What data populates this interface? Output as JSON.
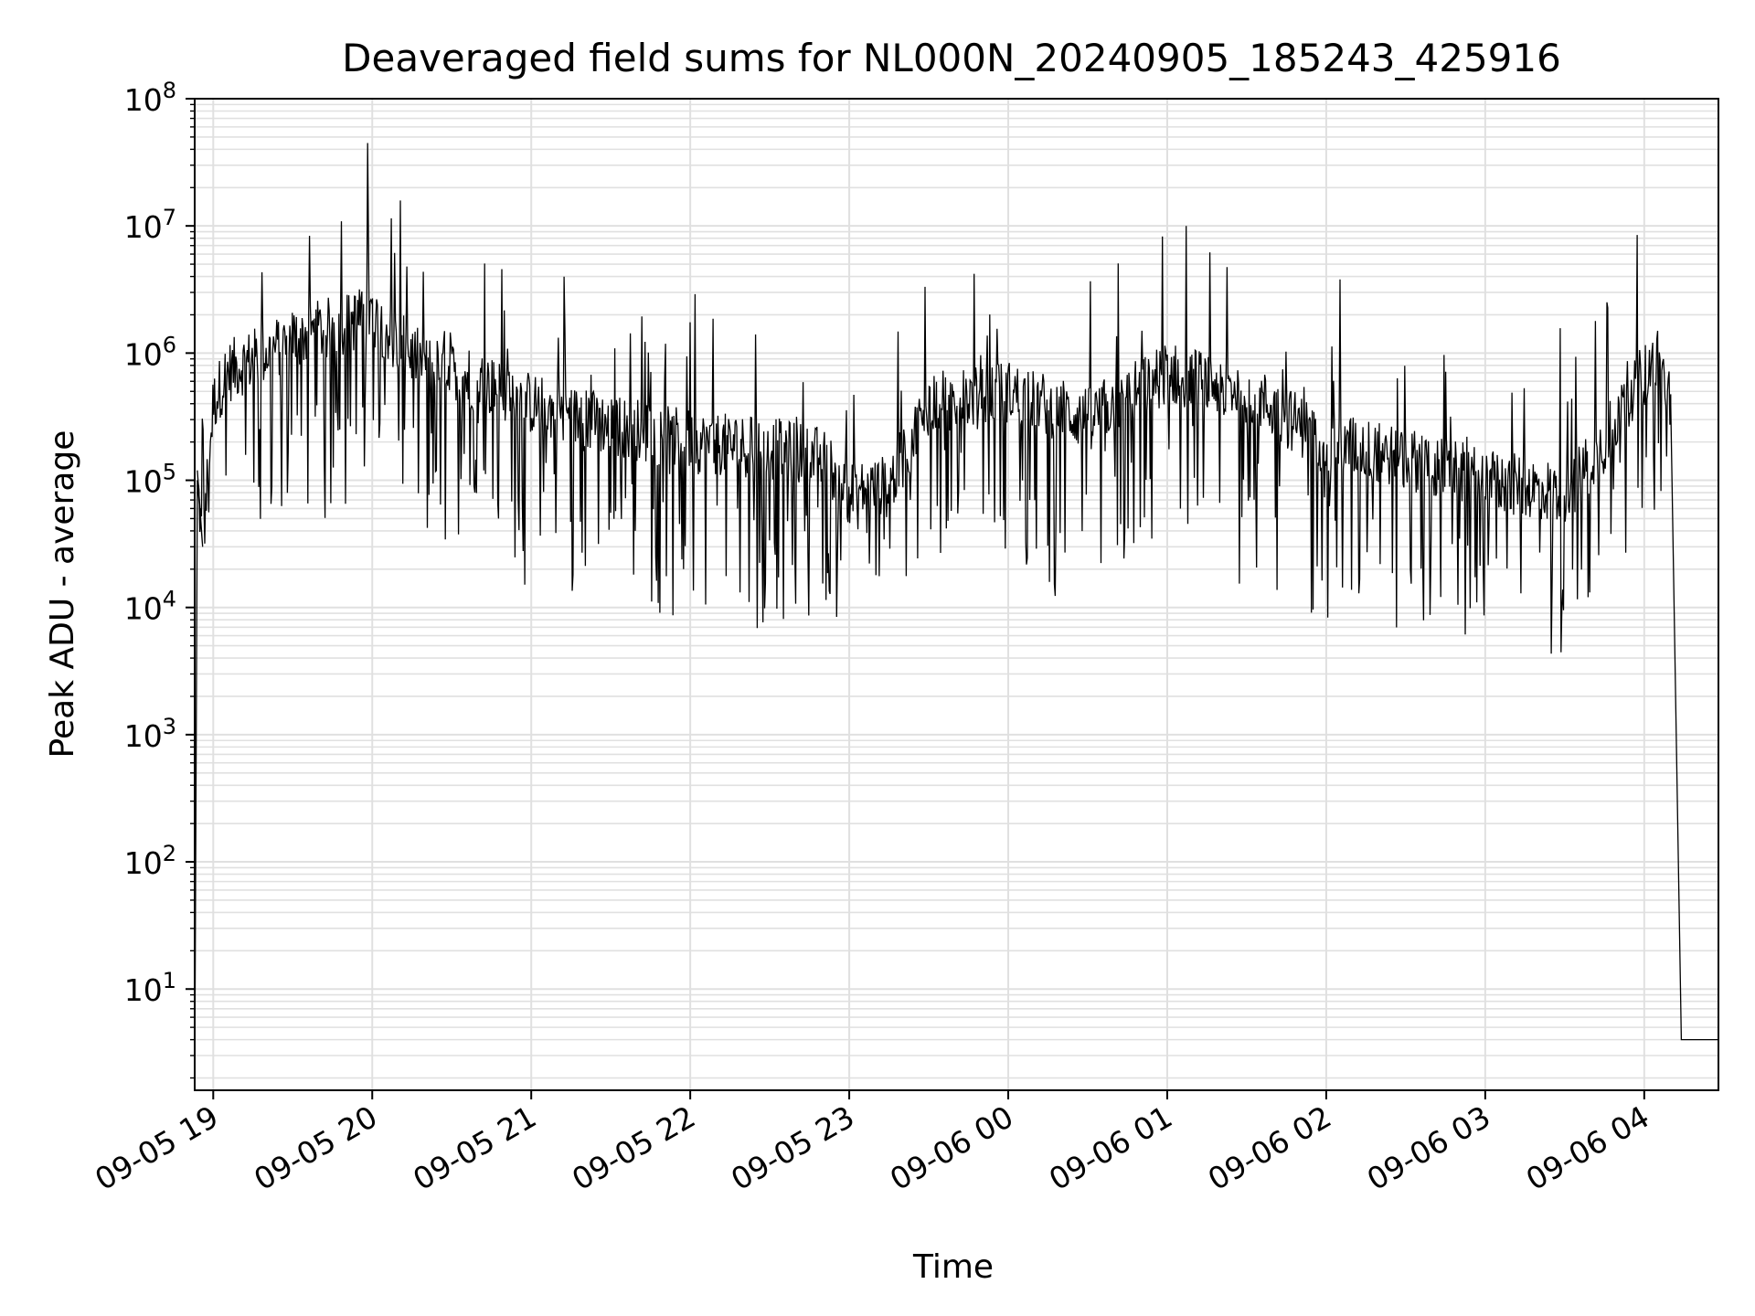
{
  "chart_data": {
    "type": "line",
    "title": "Deaveraged field sums for NL000N_20240905_185243_425916",
    "xlabel": "Time",
    "ylabel": "Peak ADU - average",
    "yscale": "log",
    "ylim": [
      1.6,
      100000000
    ],
    "xlim": [
      "2024-09-05 18:53",
      "2024-09-06 04:28"
    ],
    "grid": true,
    "line_color": "#000000",
    "grid_color": "#e0e0e0",
    "x_ticks": [
      "2024-09-05 19:00",
      "2024-09-05 20:00",
      "2024-09-05 21:00",
      "2024-09-05 22:00",
      "2024-09-05 23:00",
      "2024-09-06 00:00",
      "2024-09-06 01:00",
      "2024-09-06 02:00",
      "2024-09-06 03:00",
      "2024-09-06 04:00"
    ],
    "x_tick_labels": [
      "09-05 19",
      "09-05 20",
      "09-05 21",
      "09-05 22",
      "09-05 23",
      "09-06 00",
      "09-06 01",
      "09-06 02",
      "09-06 03",
      "09-06 04"
    ],
    "y_ticks": [
      10,
      100,
      1000,
      10000,
      100000,
      1000000,
      10000000,
      100000000
    ],
    "y_tick_labels": [
      {
        "base": "10",
        "exp": "1"
      },
      {
        "base": "10",
        "exp": "2"
      },
      {
        "base": "10",
        "exp": "3"
      },
      {
        "base": "10",
        "exp": "4"
      },
      {
        "base": "10",
        "exp": "5"
      },
      {
        "base": "10",
        "exp": "6"
      },
      {
        "base": "10",
        "exp": "7"
      },
      {
        "base": "10",
        "exp": "8"
      }
    ],
    "series": [
      {
        "x": [
          "2024-09-05 18:53",
          "2024-09-05 18:54",
          "2024-09-05 18:56",
          "2024-09-05 19:00",
          "2024-09-05 19:05",
          "2024-09-05 19:10",
          "2024-09-05 19:20",
          "2024-09-05 19:30",
          "2024-09-05 19:45",
          "2024-09-05 20:00",
          "2024-09-05 20:10",
          "2024-09-05 20:20",
          "2024-09-05 20:30",
          "2024-09-05 20:40",
          "2024-09-05 20:50",
          "2024-09-05 21:00",
          "2024-09-05 21:20",
          "2024-09-05 21:40",
          "2024-09-05 22:00",
          "2024-09-05 22:30",
          "2024-09-05 22:50",
          "2024-09-05 23:00",
          "2024-09-05 23:15",
          "2024-09-05 23:30",
          "2024-09-05 23:45",
          "2024-09-06 00:00",
          "2024-09-06 00:30",
          "2024-09-06 01:00",
          "2024-09-06 01:30",
          "2024-09-06 02:00",
          "2024-09-06 02:30",
          "2024-09-06 03:00",
          "2024-09-06 03:30",
          "2024-09-06 03:45",
          "2024-09-06 03:55",
          "2024-09-06 04:05",
          "2024-09-06 04:10",
          "2024-09-06 04:14",
          "2024-09-06 04:28"
        ],
        "y": [
          1.6,
          100000,
          30000,
          400000,
          700000,
          800000,
          1000000,
          1300000,
          1600000,
          2000000,
          1200000,
          800000,
          700000,
          600000,
          500000,
          400000,
          300000,
          250000,
          200000,
          180000,
          150000,
          80000,
          90000,
          400000,
          450000,
          500000,
          300000,
          700000,
          500000,
          200000,
          150000,
          100000,
          80000,
          200000,
          500000,
          900000,
          400000,
          4,
          4
        ]
      }
    ]
  }
}
